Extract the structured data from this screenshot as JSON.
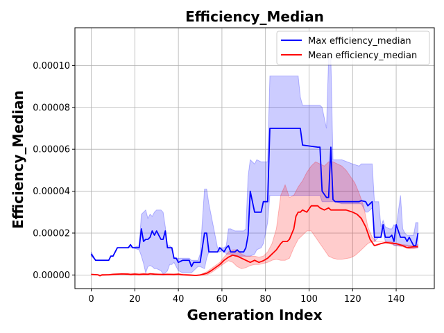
{
  "chart_data": {
    "type": "line",
    "title": "Efficiency_Median",
    "xlabel": "Generation Index",
    "ylabel": "Efficiency_Median",
    "xlim": [
      -7.5,
      157.5
    ],
    "ylim": [
      -6.5e-06,
      0.000118
    ],
    "xticks": [
      0,
      20,
      40,
      60,
      80,
      100,
      120,
      140
    ],
    "yticks": [
      0,
      2e-05,
      4e-05,
      6e-05,
      8e-05,
      0.0001
    ],
    "ytick_labels": [
      "0.00000",
      "0.00002",
      "0.00004",
      "0.00006",
      "0.00008",
      "0.00010"
    ],
    "grid": true,
    "legend": {
      "position": "top-right",
      "entries": [
        "Max efficiency_median",
        "Mean efficiency_median"
      ]
    },
    "series": [
      {
        "name": "Max efficiency_median",
        "color": "#0000ff",
        "x": [
          0,
          2,
          4,
          8,
          9,
          10,
          12,
          17,
          18,
          19,
          22,
          23,
          24,
          25,
          26,
          27,
          28,
          29,
          30,
          32,
          33,
          34,
          35,
          36,
          37,
          38,
          39,
          40,
          42,
          43,
          44,
          45,
          46,
          47,
          49,
          50,
          52,
          53,
          54,
          58,
          59,
          61,
          62,
          63,
          64,
          66,
          67,
          68,
          70,
          71,
          72,
          73,
          75,
          76,
          78,
          79,
          80,
          81,
          82,
          95,
          96,
          97,
          104,
          105,
          106,
          108,
          109,
          110,
          111,
          112,
          115,
          120,
          123,
          124,
          126,
          127,
          129,
          130,
          132,
          133,
          134,
          135,
          137,
          138,
          139,
          140,
          142,
          143,
          144,
          145,
          146,
          148,
          149,
          150
        ],
        "y": [
          1e-05,
          7e-06,
          7e-06,
          7e-06,
          9e-06,
          9e-06,
          1.3e-05,
          1.3e-05,
          1.45e-05,
          1.3e-05,
          1.3e-05,
          2.2e-05,
          1.6e-05,
          1.7e-05,
          1.7e-05,
          1.8e-05,
          2.1e-05,
          1.9e-05,
          2.1e-05,
          1.7e-05,
          1.7e-05,
          2.1e-05,
          1.3e-05,
          1.3e-05,
          1.3e-05,
          8e-06,
          8e-06,
          6e-06,
          7e-06,
          7e-06,
          7e-06,
          7e-06,
          4e-06,
          6e-06,
          6e-06,
          6e-06,
          2e-05,
          2e-05,
          1.1e-05,
          1.1e-05,
          1.3e-05,
          1.1e-05,
          1.3e-05,
          1.4e-05,
          1.1e-05,
          1.1e-05,
          1.2e-05,
          1.1e-05,
          1.1e-05,
          1.3e-05,
          1.9e-05,
          4e-05,
          3e-05,
          3e-05,
          3e-05,
          3.5e-05,
          3.5e-05,
          3.5e-05,
          7e-05,
          7e-05,
          7e-05,
          6.2e-05,
          6.1e-05,
          6.1e-05,
          4e-05,
          3.7e-05,
          3.7e-05,
          6.1e-05,
          3.6e-05,
          3.5e-05,
          3.5e-05,
          3.5e-05,
          3.5e-05,
          3.55e-05,
          3.5e-05,
          3.3e-05,
          3.5e-05,
          1.8e-05,
          1.8e-05,
          1.8e-05,
          2.4e-05,
          1.8e-05,
          1.8e-05,
          1.9e-05,
          1.6e-05,
          2.4e-05,
          1.8e-05,
          1.8e-05,
          1.8e-05,
          1.6e-05,
          1.8e-05,
          1.4e-05,
          1.4e-05,
          2e-05
        ]
      },
      {
        "name": "Mean efficiency_median",
        "color": "#ff0000",
        "x": [
          0,
          3,
          4,
          5,
          8,
          10,
          14,
          17,
          18,
          20,
          22,
          24,
          26,
          27,
          29,
          31,
          33,
          35,
          38,
          40,
          42,
          45,
          48,
          50,
          53,
          55,
          57,
          59,
          61,
          63,
          65,
          66,
          67,
          69,
          71,
          73,
          75,
          77,
          79,
          81,
          83,
          85,
          87,
          88,
          90,
          91,
          93,
          94,
          95,
          96,
          97,
          99,
          101,
          102,
          104,
          105,
          107,
          109,
          110,
          112,
          115,
          117,
          120,
          122,
          124,
          126,
          128,
          130,
          133,
          135,
          137,
          140,
          143,
          145,
          148,
          150
        ],
        "y": [
          3e-07,
          1e-07,
          -4e-07,
          1e-07,
          1e-07,
          3e-07,
          5e-07,
          4e-07,
          2e-07,
          4e-07,
          2e-07,
          4e-07,
          3e-07,
          6e-07,
          4e-07,
          3e-07,
          2e-07,
          3e-07,
          2e-07,
          4e-07,
          1e-07,
          0,
          -2e-07,
          0,
          8e-07,
          2e-06,
          3.5e-06,
          5e-06,
          7e-06,
          8.5e-06,
          9.5e-06,
          9.2e-06,
          9e-06,
          8e-06,
          7e-06,
          6e-06,
          7e-06,
          6e-06,
          6.8e-06,
          8e-06,
          1e-05,
          1.2e-05,
          1.5e-05,
          1.6e-05,
          1.6e-05,
          1.7e-05,
          2.2e-05,
          2.8e-05,
          3e-05,
          3e-05,
          3.1e-05,
          3e-05,
          3.3e-05,
          3.3e-05,
          3.3e-05,
          3.2e-05,
          3.1e-05,
          3.2e-05,
          3.1e-05,
          3.1e-05,
          3.1e-05,
          3.1e-05,
          3e-05,
          2.9e-05,
          2.7e-05,
          2.3e-05,
          1.7e-05,
          1.4e-05,
          1.5e-05,
          1.55e-05,
          1.53e-05,
          1.5e-05,
          1.4e-05,
          1.3e-05,
          1.35e-05,
          1.35e-05
        ]
      }
    ],
    "bands": [
      {
        "series": "Max efficiency_median",
        "color": "#0000ff",
        "opacity": 0.2,
        "x": [
          0,
          2,
          4,
          8,
          9,
          10,
          12,
          17,
          18,
          19,
          22,
          23,
          24,
          25,
          26,
          27,
          28,
          29,
          30,
          32,
          33,
          34,
          35,
          36,
          37,
          38,
          40,
          42,
          45,
          46,
          47,
          49,
          50,
          52,
          53,
          54,
          58,
          59,
          61,
          62,
          63,
          64,
          66,
          68,
          70,
          71,
          72,
          73,
          75,
          76,
          78,
          79,
          80,
          81,
          82,
          95,
          96,
          97,
          104,
          105,
          106,
          108,
          109,
          110,
          111,
          112,
          115,
          120,
          123,
          124,
          126,
          127,
          129,
          130,
          132,
          133,
          134,
          135,
          137,
          138,
          139,
          140,
          142,
          143,
          144,
          145,
          146,
          148,
          149,
          150
        ],
        "lower": [
          9e-06,
          7e-06,
          7e-06,
          7e-06,
          9e-06,
          9e-06,
          1.3e-05,
          1.3e-05,
          1.3e-05,
          1.3e-05,
          1.2e-05,
          9e-06,
          5.5e-06,
          1e-06,
          4e-06,
          4.5e-06,
          4e-06,
          3e-06,
          3e-06,
          2e-06,
          5e-07,
          1e-06,
          2e-06,
          5e-06,
          5e-06,
          6e-06,
          2e-06,
          1e-06,
          1e-06,
          1e-06,
          2e-06,
          4e-06,
          4e-06,
          3e-06,
          8e-06,
          1.1e-05,
          1.1e-05,
          1.1e-05,
          1.2e-05,
          1e-05,
          1e-05,
          1e-05,
          9e-06,
          9e-06,
          9e-06,
          9e-06,
          9e-06,
          9e-06,
          1e-05,
          1.2e-05,
          1.3e-05,
          1.5e-05,
          2e-05,
          2.5e-05,
          3.8e-05,
          3.8e-05,
          3.8e-05,
          3.8e-05,
          3.8e-05,
          3.8e-05,
          3.5e-05,
          3.5e-05,
          3.5e-05,
          3.5e-05,
          3.5e-05,
          3.5e-05,
          3.4e-05,
          3.4e-05,
          3.4e-05,
          3.4e-05,
          3e-05,
          3e-05,
          3.2e-05,
          1.6e-05,
          1.8e-05,
          1.8e-05,
          2.1e-05,
          1.6e-05,
          1.6e-05,
          1.6e-05,
          1.4e-05,
          1.4e-05,
          1.4e-05,
          1.4e-05,
          1.4e-05,
          1.4e-05,
          1.3e-05,
          1.3e-05,
          1.3e-05,
          1.3e-05
        ],
        "upper": [
          1.1e-05,
          7e-06,
          7e-06,
          7e-06,
          9e-06,
          9e-06,
          1.3e-05,
          1.3e-05,
          1.45e-05,
          1.3e-05,
          1.4e-05,
          2.9e-05,
          3e-05,
          3.1e-05,
          2.7e-05,
          2.9e-05,
          2.8e-05,
          3e-05,
          3.1e-05,
          3.1e-05,
          3e-05,
          2.3e-05,
          1.4e-05,
          1.4e-05,
          1.3e-05,
          8e-06,
          8e-06,
          8e-06,
          8e-06,
          7e-06,
          7e-06,
          7e-06,
          1e-05,
          4.1e-05,
          4.1e-05,
          3.4e-05,
          1.3e-05,
          1.3e-05,
          1.3e-05,
          1.4e-05,
          2.2e-05,
          2.2e-05,
          2.1e-05,
          2.1e-05,
          2.1e-05,
          2.2e-05,
          4.7e-05,
          5.5e-05,
          5.3e-05,
          5.5e-05,
          5.4e-05,
          5.4e-05,
          5.4e-05,
          5.4e-05,
          9.5e-05,
          9.5e-05,
          8.5e-05,
          8.1e-05,
          8.1e-05,
          8.1e-05,
          8e-05,
          7e-05,
          0.000104,
          0.000104,
          5.5e-05,
          5.5e-05,
          5.5e-05,
          5.3e-05,
          5.2e-05,
          5.3e-05,
          5.3e-05,
          5.3e-05,
          5.3e-05,
          3.5e-05,
          3.5e-05,
          2.3e-05,
          2.6e-05,
          2.3e-05,
          2.2e-05,
          2.2e-05,
          2.4e-05,
          2.3e-05,
          3.8e-05,
          2.2e-05,
          2e-05,
          1.9e-05,
          1.9e-05,
          1.9e-05,
          2.5e-05,
          2.5e-05
        ]
      },
      {
        "series": "Mean efficiency_median",
        "color": "#ff0000",
        "opacity": 0.2,
        "x": [
          0,
          3,
          5,
          10,
          15,
          20,
          25,
          30,
          35,
          40,
          45,
          48,
          50,
          53,
          55,
          57,
          59,
          61,
          63,
          65,
          67,
          69,
          71,
          73,
          75,
          77,
          79,
          81,
          83,
          85,
          87,
          89,
          91,
          93,
          95,
          97,
          99,
          101,
          103,
          105,
          107,
          109,
          111,
          113,
          115,
          117,
          119,
          121,
          123,
          125,
          127,
          129,
          131,
          133,
          135,
          137,
          140,
          143,
          146,
          148,
          150
        ],
        "lower": [
          2e-07,
          0,
          -4e-07,
          0,
          2e-07,
          0,
          1e-07,
          0,
          0,
          0,
          -4e-07,
          -4e-07,
          -2e-07,
          0,
          1e-06,
          2.5e-06,
          4e-06,
          5.5e-06,
          6.8e-06,
          6e-06,
          4e-06,
          3e-06,
          3.5e-06,
          4.5e-06,
          5e-06,
          5e-06,
          5.5e-06,
          6e-06,
          7e-06,
          7.5e-06,
          7e-06,
          7e-06,
          8e-06,
          1.3e-05,
          1.7e-05,
          1.9e-05,
          2.1e-05,
          2.1e-05,
          1.8e-05,
          1.5e-05,
          1.2e-05,
          9e-06,
          8e-06,
          7.5e-06,
          7.5e-06,
          7.8e-06,
          8.2e-06,
          9.2e-06,
          1.1e-05,
          1.3e-05,
          1.5e-05,
          1.6e-05,
          1.6e-05,
          1.6e-05,
          1.6e-05,
          1.5e-05,
          1.4e-05,
          1.35e-05,
          1.25e-05,
          1.25e-05,
          1.3e-05
        ],
        "upper": [
          4e-07,
          2e-07,
          0,
          6e-07,
          8e-07,
          8e-07,
          8e-07,
          5e-07,
          6e-07,
          6e-07,
          2e-07,
          0,
          2e-07,
          1.5e-06,
          3e-06,
          4.5e-06,
          6e-06,
          8.5e-06,
          1.1e-05,
          1.2e-05,
          1.2e-05,
          1e-05,
          9e-06,
          9e-06,
          9e-06,
          8.5e-06,
          9e-06,
          1.1e-05,
          1.5e-05,
          2.2e-05,
          3.8e-05,
          4.3e-05,
          3.7e-05,
          3.8e-05,
          4.2e-05,
          4.5e-05,
          4.9e-05,
          5.2e-05,
          5.4e-05,
          5.3e-05,
          5.2e-05,
          5.4e-05,
          5.4e-05,
          5.3e-05,
          5.2e-05,
          5e-05,
          4.7e-05,
          4.4e-05,
          3.9e-05,
          3.3e-05,
          2.3e-05,
          1.8e-05,
          1.6e-05,
          1.6e-05,
          1.6e-05,
          1.6e-05,
          1.5e-05,
          1.45e-05,
          1.42e-05,
          1.4e-05,
          1.45e-05
        ]
      }
    ]
  }
}
